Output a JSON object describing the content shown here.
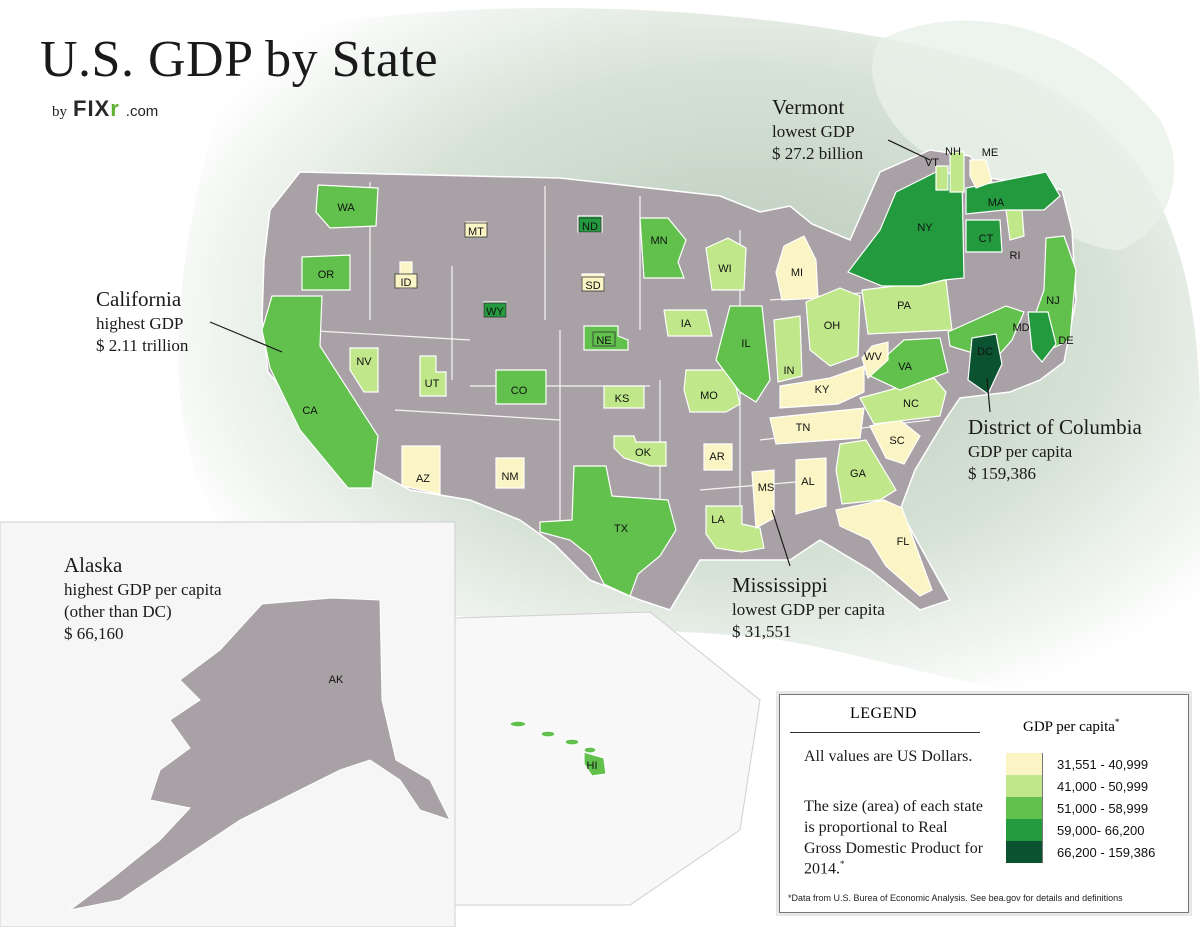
{
  "title": "U.S. GDP by State",
  "byline": {
    "by": "by",
    "brand_main": "FIX",
    "brand_accent": "r",
    "brand_domain": ".com"
  },
  "colors": {
    "bin1": "#fbf5c5",
    "bin2": "#c0e88a",
    "bin3": "#62c04c",
    "bin4": "#249a3e",
    "bin5": "#0b5230",
    "other": "#a8a1a5",
    "background_green": "#d6e2d4"
  },
  "callouts": {
    "vermont": {
      "head": "Vermont",
      "line1": "lowest GDP",
      "line2": "$ 27.2 billion"
    },
    "california": {
      "head": "California",
      "line1": "highest GDP",
      "line2": "$ 2.11 trillion"
    },
    "dc": {
      "head": "District of Columbia",
      "line1": "GDP per capita",
      "line2": "$ 159,386"
    },
    "mississippi": {
      "head": "Mississippi",
      "line1": "lowest GDP per capita",
      "line2": "$ 31,551"
    },
    "alaska": {
      "head": "Alaska",
      "line1": "highest GDP per capita",
      "line2": "(other than DC)",
      "line3": "$ 66,160"
    }
  },
  "states": [
    {
      "code": "WA",
      "bin": 3
    },
    {
      "code": "OR",
      "bin": 3
    },
    {
      "code": "CA",
      "bin": 3
    },
    {
      "code": "NV",
      "bin": 2
    },
    {
      "code": "ID",
      "bin": 1
    },
    {
      "code": "MT",
      "bin": 1
    },
    {
      "code": "WY",
      "bin": 4
    },
    {
      "code": "UT",
      "bin": 2
    },
    {
      "code": "CO",
      "bin": 3
    },
    {
      "code": "AZ",
      "bin": 1
    },
    {
      "code": "NM",
      "bin": 1
    },
    {
      "code": "ND",
      "bin": 4
    },
    {
      "code": "SD",
      "bin": 1
    },
    {
      "code": "NE",
      "bin": 3
    },
    {
      "code": "KS",
      "bin": 2
    },
    {
      "code": "OK",
      "bin": 2
    },
    {
      "code": "TX",
      "bin": 3
    },
    {
      "code": "MN",
      "bin": 3
    },
    {
      "code": "IA",
      "bin": 2
    },
    {
      "code": "MO",
      "bin": 2
    },
    {
      "code": "AR",
      "bin": 1
    },
    {
      "code": "LA",
      "bin": 2
    },
    {
      "code": "WI",
      "bin": 2
    },
    {
      "code": "IL",
      "bin": 3
    },
    {
      "code": "MI",
      "bin": 1
    },
    {
      "code": "IN",
      "bin": 2
    },
    {
      "code": "OH",
      "bin": 2
    },
    {
      "code": "KY",
      "bin": 1
    },
    {
      "code": "TN",
      "bin": 1
    },
    {
      "code": "MS",
      "bin": 1
    },
    {
      "code": "AL",
      "bin": 1
    },
    {
      "code": "GA",
      "bin": 2
    },
    {
      "code": "FL",
      "bin": 1
    },
    {
      "code": "SC",
      "bin": 1
    },
    {
      "code": "NC",
      "bin": 2
    },
    {
      "code": "VA",
      "bin": 3
    },
    {
      "code": "WV",
      "bin": 1
    },
    {
      "code": "PA",
      "bin": 2
    },
    {
      "code": "NY",
      "bin": 4
    },
    {
      "code": "NJ",
      "bin": 3
    },
    {
      "code": "DE",
      "bin": 4
    },
    {
      "code": "MD",
      "bin": 3
    },
    {
      "code": "DC",
      "bin": 5
    },
    {
      "code": "CT",
      "bin": 4
    },
    {
      "code": "RI",
      "bin": 2
    },
    {
      "code": "MA",
      "bin": 4
    },
    {
      "code": "VT",
      "bin": 2
    },
    {
      "code": "NH",
      "bin": 2
    },
    {
      "code": "ME",
      "bin": 1
    },
    {
      "code": "AK",
      "bin": 4
    },
    {
      "code": "HI",
      "bin": 3
    }
  ],
  "legend": {
    "title": "LEGEND",
    "note1": "All values are US Dollars.",
    "note2": "The size (area) of each state is proportional to Real Gross Domestic Product for 2014.",
    "note2_mark": "*",
    "gdp_title": "GDP per capita",
    "gdp_mark": "*",
    "items": [
      {
        "label": "31,551 - 40,999",
        "color": "#fbf5c5"
      },
      {
        "label": "41,000 - 50,999",
        "color": "#c0e88a"
      },
      {
        "label": "51,000 - 58,999",
        "color": "#62c04c"
      },
      {
        "label": "59,000- 66,200",
        "color": "#249a3e"
      },
      {
        "label": "66,200 - 159,386",
        "color": "#0b5230"
      }
    ],
    "footnote": "*Data from U.S. Burea of Economic Analysis. See bea.gov for details and definitions"
  }
}
